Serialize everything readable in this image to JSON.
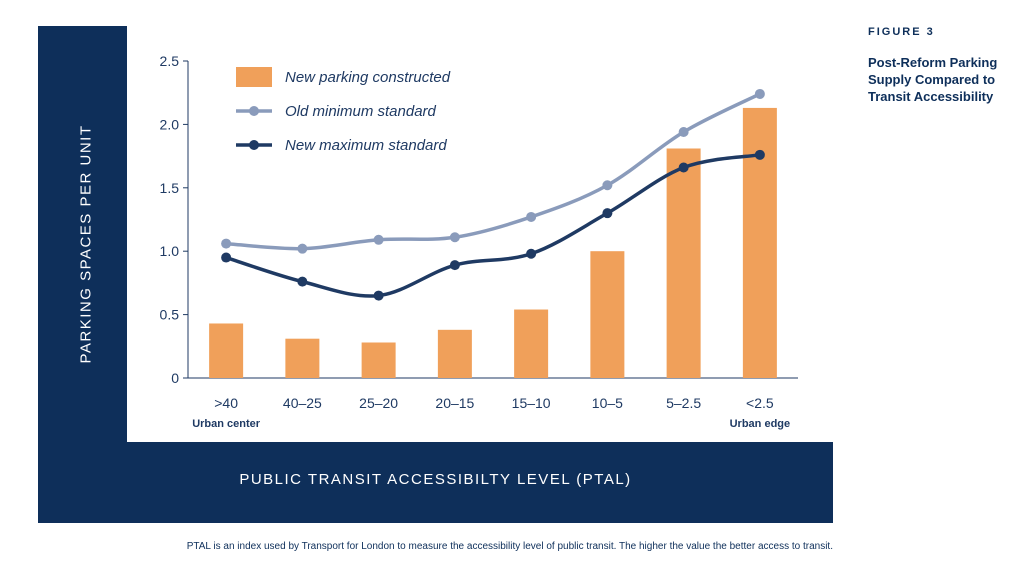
{
  "figure": {
    "number": "FIGURE 3",
    "title": "Post-Reform Parking Supply Compared to Transit Accessibility"
  },
  "footnote": "PTAL is an index used by Transport for London to measure the accessibility level of public transit. The higher the value the better access to transit.",
  "colors": {
    "frame": "#0e2f5a",
    "bar": "#f0a05a",
    "old_line": "#8a9bbb",
    "new_line": "#1f3a63"
  },
  "chart_data": {
    "type": "bar",
    "ylabel": "PARKING SPACES PER UNIT",
    "xlabel": "PUBLIC TRANSIT ACCESSIBILTY LEVEL (PTAL)",
    "categories": [
      ">40",
      "40–25",
      "25–20",
      "20–15",
      "15–10",
      "10–5",
      "5–2.5",
      "<2.5"
    ],
    "category_notes": {
      ">40": "Urban center",
      "<2.5": "Urban edge"
    },
    "ylim": [
      0,
      2.5
    ],
    "yticks": [
      0,
      0.5,
      1.0,
      1.5,
      2.0,
      2.5
    ],
    "ytick_labels": [
      "0",
      "0.5",
      "1.0",
      "1.5",
      "2.0",
      "2.5"
    ],
    "grid": false,
    "legend_position": "top-left",
    "series": [
      {
        "name": "New parking constructed",
        "kind": "bar",
        "values": [
          0.43,
          0.31,
          0.28,
          0.38,
          0.54,
          1.0,
          1.81,
          2.13
        ]
      },
      {
        "name": "Old minimum standard",
        "kind": "line",
        "values": [
          1.06,
          1.02,
          1.09,
          1.11,
          1.27,
          1.52,
          1.94,
          2.24
        ]
      },
      {
        "name": "New maximum standard",
        "kind": "line",
        "values": [
          0.95,
          0.76,
          0.65,
          0.89,
          0.98,
          1.3,
          1.66,
          1.76
        ]
      }
    ]
  }
}
